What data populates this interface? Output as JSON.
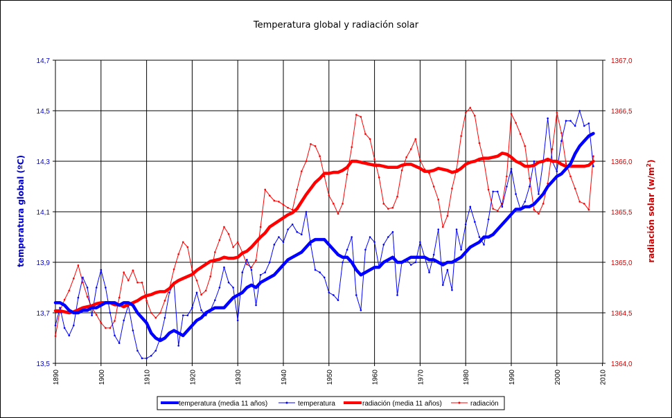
{
  "chart_data": {
    "type": "line",
    "title": "Temperatura global y radiación solar",
    "xlabel": "",
    "ylabel": "temperatura global (ºC)",
    "y2label": "radiación solar (w/m²)",
    "y2label_main": "radiación solar (w/m",
    "y2label_sup": "2",
    "y2label_end": ")",
    "xlim": [
      1889,
      2010
    ],
    "ylim": [
      13.5,
      14.7
    ],
    "y2lim": [
      1364.0,
      1367.0
    ],
    "x_ticks": [
      "1890",
      "1900",
      "1910",
      "1920",
      "1930",
      "1940",
      "1950",
      "1960",
      "1970",
      "1980",
      "1990",
      "2000",
      "2010"
    ],
    "y_ticks": [
      "13,5",
      "13,7",
      "13,9",
      "14,1",
      "14,3",
      "14,5",
      "14,7"
    ],
    "y2_ticks": [
      "1364,0",
      "1364,5",
      "1365,0",
      "1365,5",
      "1366,0",
      "1366,5",
      "1367,0"
    ],
    "legend_position": "bottom",
    "colors": {
      "temperature": "#0000ff",
      "radiation": "#ff0000",
      "grid": "#000000"
    },
    "x": [
      1890,
      1891,
      1892,
      1893,
      1894,
      1895,
      1896,
      1897,
      1898,
      1899,
      1900,
      1901,
      1902,
      1903,
      1904,
      1905,
      1906,
      1907,
      1908,
      1909,
      1910,
      1911,
      1912,
      1913,
      1914,
      1915,
      1916,
      1917,
      1918,
      1919,
      1920,
      1921,
      1922,
      1923,
      1924,
      1925,
      1926,
      1927,
      1928,
      1929,
      1930,
      1931,
      1932,
      1933,
      1934,
      1935,
      1936,
      1937,
      1938,
      1939,
      1940,
      1941,
      1942,
      1943,
      1944,
      1945,
      1946,
      1947,
      1948,
      1949,
      1950,
      1951,
      1952,
      1953,
      1954,
      1955,
      1956,
      1957,
      1958,
      1959,
      1960,
      1961,
      1962,
      1963,
      1964,
      1965,
      1966,
      1967,
      1968,
      1969,
      1970,
      1971,
      1972,
      1973,
      1974,
      1975,
      1976,
      1977,
      1978,
      1979,
      1980,
      1981,
      1982,
      1983,
      1984,
      1985,
      1986,
      1987,
      1988,
      1989,
      1990,
      1991,
      1992,
      1993,
      1994,
      1995,
      1996,
      1997,
      1998,
      1999,
      2000,
      2001,
      2002,
      2003,
      2004,
      2005,
      2006,
      2007,
      2008
    ],
    "series": [
      {
        "name": "temperatura (media 11 años)",
        "axis": "left",
        "color": "#0000ff",
        "width": "thick",
        "values": [
          13.74,
          13.74,
          13.73,
          13.71,
          13.7,
          13.7,
          13.71,
          13.71,
          13.72,
          13.72,
          13.73,
          13.74,
          13.74,
          13.74,
          13.73,
          13.74,
          13.74,
          13.73,
          13.7,
          13.68,
          13.66,
          13.62,
          13.6,
          13.59,
          13.6,
          13.62,
          13.63,
          13.62,
          13.61,
          13.63,
          13.65,
          13.67,
          13.68,
          13.7,
          13.71,
          13.72,
          13.72,
          13.72,
          13.74,
          13.76,
          13.77,
          13.78,
          13.8,
          13.81,
          13.8,
          13.82,
          13.83,
          13.84,
          13.85,
          13.87,
          13.89,
          13.91,
          13.92,
          13.93,
          13.94,
          13.96,
          13.98,
          13.99,
          13.99,
          13.99,
          13.97,
          13.95,
          13.93,
          13.92,
          13.92,
          13.9,
          13.87,
          13.85,
          13.86,
          13.87,
          13.88,
          13.88,
          13.9,
          13.91,
          13.92,
          13.9,
          13.9,
          13.91,
          13.92,
          13.92,
          13.92,
          13.92,
          13.91,
          13.91,
          13.9,
          13.89,
          13.9,
          13.9,
          13.91,
          13.92,
          13.94,
          13.96,
          13.97,
          13.98,
          14.0,
          14.0,
          14.01,
          14.03,
          14.05,
          14.07,
          14.09,
          14.11,
          14.11,
          14.12,
          14.12,
          14.13,
          14.15,
          14.17,
          14.2,
          14.22,
          14.24,
          14.25,
          14.27,
          14.29,
          14.33,
          14.36,
          14.38,
          14.4,
          14.41
        ]
      },
      {
        "name": "temperatura",
        "axis": "left",
        "color": "#0000ff",
        "width": "thin",
        "values": [
          13.65,
          13.72,
          13.64,
          13.61,
          13.65,
          13.76,
          13.84,
          13.8,
          13.69,
          13.8,
          13.87,
          13.8,
          13.7,
          13.61,
          13.58,
          13.67,
          13.73,
          13.63,
          13.55,
          13.52,
          13.52,
          13.53,
          13.55,
          13.6,
          13.68,
          13.78,
          13.82,
          13.57,
          13.69,
          13.69,
          13.72,
          13.78,
          13.71,
          13.69,
          13.71,
          13.75,
          13.8,
          13.88,
          13.82,
          13.8,
          13.67,
          13.86,
          13.91,
          13.87,
          13.73,
          13.85,
          13.86,
          13.9,
          13.97,
          14.0,
          13.98,
          14.03,
          14.05,
          14.02,
          14.01,
          14.1,
          13.97,
          13.87,
          13.86,
          13.84,
          13.78,
          13.77,
          13.75,
          13.9,
          13.95,
          14.0,
          13.77,
          13.71,
          13.95,
          14.0,
          13.98,
          13.88,
          13.97,
          14.0,
          14.02,
          13.77,
          13.9,
          13.91,
          13.89,
          13.9,
          13.98,
          13.92,
          13.86,
          13.93,
          14.03,
          13.81,
          13.87,
          13.79,
          14.03,
          13.95,
          14.05,
          14.12,
          14.06,
          14.0,
          13.97,
          14.07,
          14.18,
          14.18,
          14.12,
          14.2,
          14.27,
          14.17,
          14.11,
          14.14,
          14.2,
          14.3,
          14.17,
          14.3,
          14.47,
          14.3,
          14.26,
          14.38,
          14.46,
          14.46,
          14.44,
          14.5,
          14.44,
          14.45,
          14.28
        ]
      },
      {
        "name": "radiación (media 11 años)",
        "axis": "right",
        "color": "#ff0000",
        "width": "thick",
        "values": [
          1364.52,
          1364.52,
          1364.51,
          1364.5,
          1364.51,
          1364.53,
          1364.55,
          1364.56,
          1364.57,
          1364.59,
          1364.6,
          1364.6,
          1364.6,
          1364.58,
          1364.58,
          1364.56,
          1364.58,
          1364.6,
          1364.62,
          1364.65,
          1364.67,
          1364.68,
          1364.7,
          1364.71,
          1364.71,
          1364.74,
          1364.79,
          1364.82,
          1364.84,
          1364.86,
          1364.88,
          1364.92,
          1364.95,
          1364.98,
          1365.01,
          1365.02,
          1365.03,
          1365.05,
          1365.04,
          1365.04,
          1365.05,
          1365.09,
          1365.11,
          1365.15,
          1365.2,
          1365.25,
          1365.29,
          1365.35,
          1365.38,
          1365.41,
          1365.44,
          1365.47,
          1365.49,
          1365.53,
          1365.6,
          1365.67,
          1365.73,
          1365.79,
          1365.83,
          1365.88,
          1365.88,
          1365.89,
          1365.89,
          1365.91,
          1365.94,
          1366.0,
          1366.0,
          1365.99,
          1365.98,
          1365.97,
          1365.96,
          1365.96,
          1365.95,
          1365.94,
          1365.94,
          1365.94,
          1365.96,
          1365.97,
          1365.97,
          1365.95,
          1365.93,
          1365.9,
          1365.9,
          1365.91,
          1365.93,
          1365.92,
          1365.91,
          1365.89,
          1365.9,
          1365.93,
          1365.97,
          1365.99,
          1366.0,
          1366.02,
          1366.03,
          1366.03,
          1366.04,
          1366.05,
          1366.08,
          1366.07,
          1366.04,
          1366.0,
          1365.98,
          1365.95,
          1365.95,
          1365.96,
          1365.99,
          1366.0,
          1366.02,
          1366.0,
          1366.0,
          1365.97,
          1365.95,
          1365.95,
          1365.95,
          1365.95,
          1365.95,
          1365.96,
          1366.0
        ]
      },
      {
        "name": "radiación",
        "axis": "right",
        "color": "#ff0000",
        "width": "thin",
        "values": [
          1364.27,
          1364.52,
          1364.63,
          1364.72,
          1364.84,
          1364.97,
          1364.8,
          1364.66,
          1364.55,
          1364.48,
          1364.4,
          1364.35,
          1364.35,
          1364.42,
          1364.65,
          1364.9,
          1364.82,
          1364.92,
          1364.8,
          1364.8,
          1364.62,
          1364.5,
          1364.45,
          1364.5,
          1364.62,
          1364.74,
          1364.93,
          1365.08,
          1365.2,
          1365.15,
          1364.92,
          1364.82,
          1364.68,
          1364.72,
          1364.86,
          1365.1,
          1365.22,
          1365.35,
          1365.28,
          1365.15,
          1365.2,
          1365.1,
          1364.98,
          1364.95,
          1365.02,
          1365.35,
          1365.72,
          1365.66,
          1365.61,
          1365.6,
          1365.57,
          1365.54,
          1365.52,
          1365.72,
          1365.9,
          1366.0,
          1366.17,
          1366.15,
          1366.05,
          1365.85,
          1365.66,
          1365.58,
          1365.48,
          1365.58,
          1365.87,
          1366.14,
          1366.46,
          1366.44,
          1366.27,
          1366.22,
          1366.02,
          1365.84,
          1365.58,
          1365.53,
          1365.54,
          1365.65,
          1365.91,
          1366.04,
          1366.12,
          1366.22,
          1366.01,
          1365.92,
          1365.88,
          1365.75,
          1365.62,
          1365.35,
          1365.46,
          1365.73,
          1365.92,
          1366.25,
          1366.48,
          1366.53,
          1366.45,
          1366.18,
          1366.0,
          1365.72,
          1365.53,
          1365.51,
          1365.58,
          1365.85,
          1366.47,
          1366.38,
          1366.27,
          1366.15,
          1365.83,
          1365.52,
          1365.48,
          1365.58,
          1365.78,
          1366.12,
          1366.48,
          1366.28,
          1365.98,
          1365.85,
          1365.73,
          1365.6,
          1365.58,
          1365.52,
          1366.05
        ]
      }
    ]
  }
}
